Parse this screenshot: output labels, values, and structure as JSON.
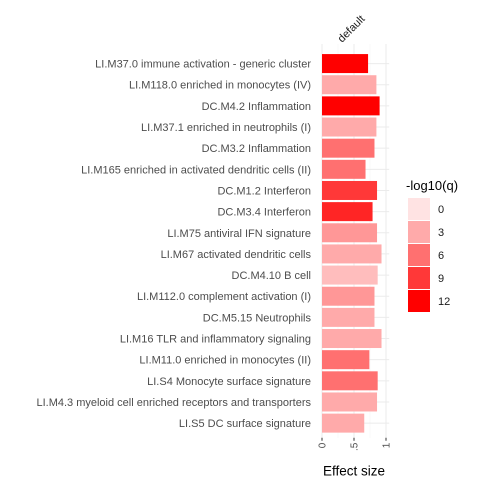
{
  "chart_data": {
    "type": "bar",
    "orientation": "horizontal",
    "column_label": "default",
    "xlabel": "Effect size",
    "xlim": [
      0,
      1.05
    ],
    "x_ticks": [
      0,
      0.5,
      1
    ],
    "x_tick_labels": [
      "0",
      ".5",
      "1"
    ],
    "categories": [
      "LI.M37.0 immune activation - generic cluster",
      "LI.M118.0 enriched in monocytes (IV)",
      "DC.M4.2 Inflammation",
      "LI.M37.1 enriched in neutrophils (I)",
      "DC.M3.2 Inflammation",
      "LI.M165 enriched in activated dendritic cells (II)",
      "DC.M1.2 Interferon",
      "DC.M3.4 Interferon",
      "LI.M75 antiviral IFN signature",
      "LI.M67 activated dendritic cells",
      "DC.M4.10 B cell",
      "LI.M112.0 complement activation (I)",
      "DC.M5.15 Neutrophils",
      "LI.M16 TLR and inflammatory signaling",
      "LI.M11.0 enriched in monocytes (II)",
      "LI.S4 Monocyte surface signature",
      "LI.M4.3 myeloid cell enriched receptors and transporters",
      "LI.S5 DC surface signature"
    ],
    "values": [
      0.72,
      0.85,
      0.9,
      0.85,
      0.82,
      0.68,
      0.86,
      0.79,
      0.86,
      0.93,
      0.87,
      0.82,
      0.82,
      0.93,
      0.74,
      0.87,
      0.86,
      0.66
    ],
    "neg_log10_q": [
      12,
      3,
      12,
      3,
      6,
      6,
      9,
      10,
      4,
      3,
      2,
      4,
      3,
      3,
      6,
      6,
      3,
      3
    ],
    "legend": {
      "title": "-log10(q)",
      "position": "right",
      "entries": [
        {
          "label": "0",
          "value": 0,
          "color": "#ffe3e3"
        },
        {
          "label": "3",
          "value": 3,
          "color": "#ffaaaa"
        },
        {
          "label": "6",
          "value": 6,
          "color": "#ff7070"
        },
        {
          "label": "9",
          "value": 9,
          "color": "#ff3838"
        },
        {
          "label": "12",
          "value": 12,
          "color": "#ff0000"
        }
      ]
    },
    "grid": true
  }
}
